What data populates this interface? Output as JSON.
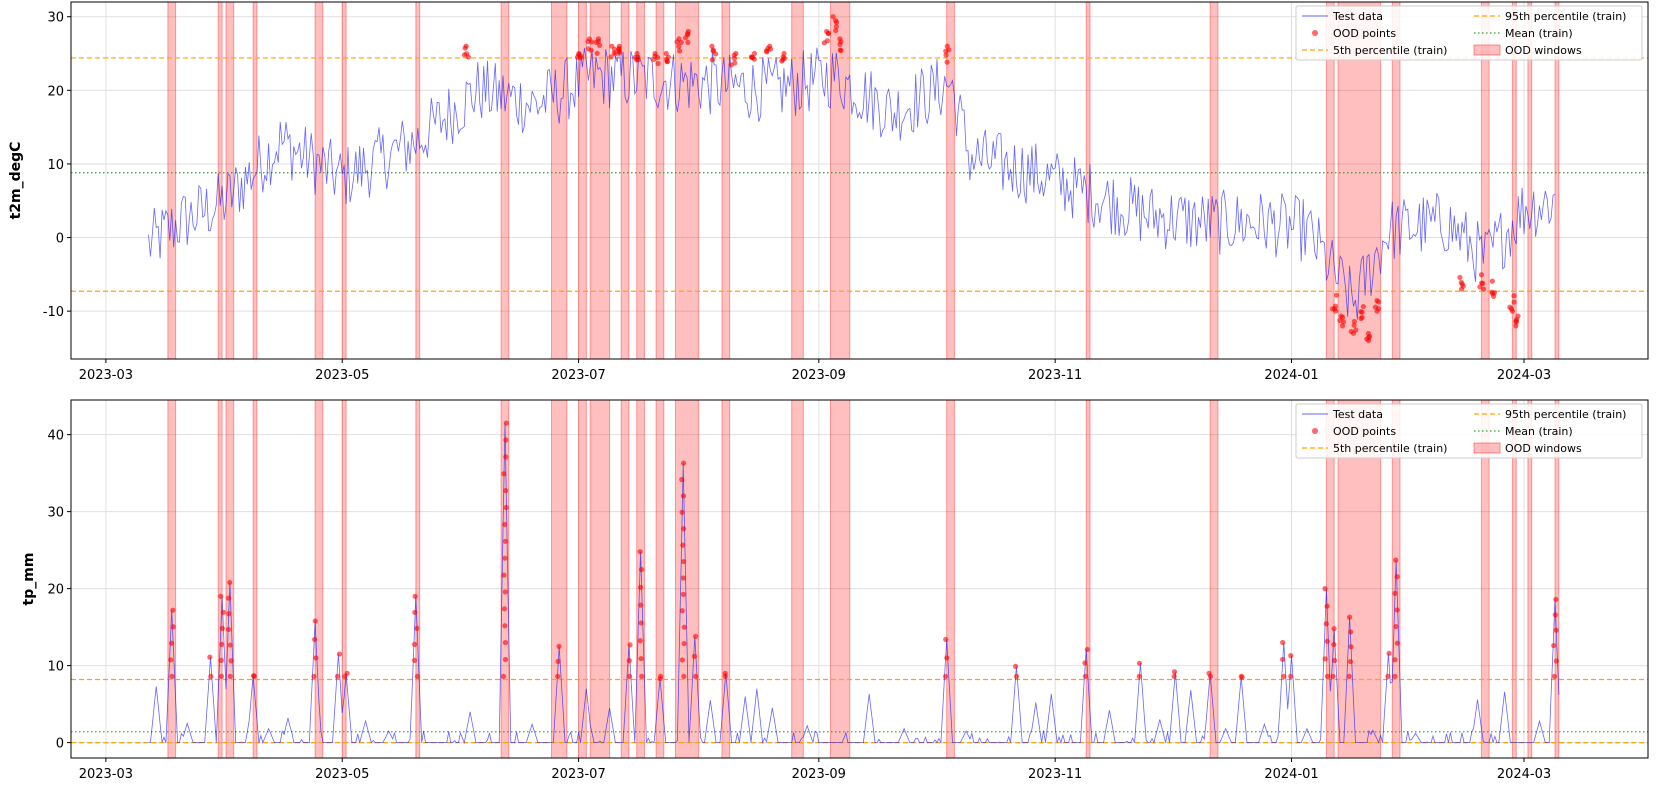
{
  "chart_data": [
    {
      "type": "line",
      "ylabel": "t2m_degC",
      "xlabel": "",
      "ylim": [
        -16.5,
        32
      ],
      "yticks": [
        -10,
        0,
        10,
        20,
        30
      ],
      "x_range": [
        "2023-02-20",
        "2024-04-02"
      ],
      "xticks": [
        "2023-03",
        "2023-05",
        "2023-07",
        "2023-09",
        "2023-11",
        "2024-01",
        "2024-03"
      ],
      "grid": true,
      "legend_position": "top-right",
      "legend": [
        "Test data",
        "OOD points",
        "5th percentile (train)",
        "95th percentile (train)",
        "Mean (train)",
        "OOD windows"
      ],
      "reference_lines": {
        "p5": -7.3,
        "p95": 24.4,
        "mean": 8.8
      },
      "test_data_profile": [
        {
          "x": "2023-03-12",
          "y": -1
        },
        {
          "x": "2023-03-20",
          "y": 2
        },
        {
          "x": "2023-04-01",
          "y": 5
        },
        {
          "x": "2023-04-15",
          "y": 13
        },
        {
          "x": "2023-05-01",
          "y": 8
        },
        {
          "x": "2023-05-20",
          "y": 13
        },
        {
          "x": "2023-06-05",
          "y": 20
        },
        {
          "x": "2023-06-20",
          "y": 18
        },
        {
          "x": "2023-07-05",
          "y": 22
        },
        {
          "x": "2023-08-01",
          "y": 21
        },
        {
          "x": "2023-08-20",
          "y": 20
        },
        {
          "x": "2023-09-05",
          "y": 22
        },
        {
          "x": "2023-09-20",
          "y": 17
        },
        {
          "x": "2023-10-05",
          "y": 21
        },
        {
          "x": "2023-10-10",
          "y": 11
        },
        {
          "x": "2023-10-25",
          "y": 9
        },
        {
          "x": "2023-11-10",
          "y": 6
        },
        {
          "x": "2023-11-25",
          "y": 3
        },
        {
          "x": "2023-12-10",
          "y": 2
        },
        {
          "x": "2023-12-25",
          "y": 2
        },
        {
          "x": "2024-01-05",
          "y": 1
        },
        {
          "x": "2024-01-17",
          "y": -9
        },
        {
          "x": "2024-01-26",
          "y": 1
        },
        {
          "x": "2024-02-10",
          "y": 2
        },
        {
          "x": "2024-02-20",
          "y": -3
        },
        {
          "x": "2024-03-01",
          "y": 4
        },
        {
          "x": "2024-03-09",
          "y": 5
        }
      ],
      "ood_points": [
        {
          "x": "2023-06-02",
          "y": 26
        },
        {
          "x": "2023-07-01",
          "y": 25
        },
        {
          "x": "2023-07-04",
          "y": 27
        },
        {
          "x": "2023-07-06",
          "y": 27
        },
        {
          "x": "2023-07-10",
          "y": 26
        },
        {
          "x": "2023-07-12",
          "y": 26
        },
        {
          "x": "2023-07-16",
          "y": 25
        },
        {
          "x": "2023-07-21",
          "y": 25
        },
        {
          "x": "2023-07-24",
          "y": 25
        },
        {
          "x": "2023-07-27",
          "y": 27
        },
        {
          "x": "2023-07-29",
          "y": 28
        },
        {
          "x": "2023-08-05",
          "y": 26
        },
        {
          "x": "2023-08-10",
          "y": 25
        },
        {
          "x": "2023-08-15",
          "y": 25
        },
        {
          "x": "2023-08-19",
          "y": 26
        },
        {
          "x": "2023-08-23",
          "y": 25
        },
        {
          "x": "2023-09-03",
          "y": 28
        },
        {
          "x": "2023-09-05",
          "y": 30
        },
        {
          "x": "2023-09-07",
          "y": 27
        },
        {
          "x": "2023-10-04",
          "y": 26
        },
        {
          "x": "2024-01-12",
          "y": -10
        },
        {
          "x": "2024-01-14",
          "y": -12
        },
        {
          "x": "2024-01-17",
          "y": -13
        },
        {
          "x": "2024-01-19",
          "y": -11
        },
        {
          "x": "2024-01-21",
          "y": -14
        },
        {
          "x": "2024-01-23",
          "y": -10
        },
        {
          "x": "2024-02-14",
          "y": -7
        },
        {
          "x": "2024-02-19",
          "y": -7
        },
        {
          "x": "2024-02-22",
          "y": -8
        },
        {
          "x": "2024-02-27",
          "y": -10
        },
        {
          "x": "2024-02-28",
          "y": -12
        }
      ]
    },
    {
      "type": "line",
      "ylabel": "tp_mm",
      "xlabel": "",
      "ylim": [
        -2,
        44.5
      ],
      "yticks": [
        0,
        10,
        20,
        30,
        40
      ],
      "x_range": [
        "2023-02-20",
        "2024-04-02"
      ],
      "xticks": [
        "2023-03",
        "2023-05",
        "2023-07",
        "2023-09",
        "2023-11",
        "2024-01",
        "2024-03"
      ],
      "grid": true,
      "legend_position": "top-right",
      "legend": [
        "Test data",
        "OOD points",
        "5th percentile (train)",
        "95th percentile (train)",
        "Mean (train)",
        "OOD windows"
      ],
      "reference_lines": {
        "p5": 0,
        "p95": 8.2,
        "mean": 1.4
      },
      "peaks": [
        {
          "x": "2023-03-18",
          "y": 17.2
        },
        {
          "x": "2023-03-28",
          "y": 11.1
        },
        {
          "x": "2023-03-31",
          "y": 19.0
        },
        {
          "x": "2023-04-02",
          "y": 20.8
        },
        {
          "x": "2023-04-08",
          "y": 8.7
        },
        {
          "x": "2023-04-24",
          "y": 15.8
        },
        {
          "x": "2023-04-30",
          "y": 11.5
        },
        {
          "x": "2023-05-02",
          "y": 9.0
        },
        {
          "x": "2023-05-20",
          "y": 19.0
        },
        {
          "x": "2023-06-12",
          "y": 41.5
        },
        {
          "x": "2023-06-26",
          "y": 12.5
        },
        {
          "x": "2023-07-14",
          "y": 12.7
        },
        {
          "x": "2023-07-17",
          "y": 24.8
        },
        {
          "x": "2023-07-22",
          "y": 8.3
        },
        {
          "x": "2023-07-28",
          "y": 36.3
        },
        {
          "x": "2023-07-31",
          "y": 13.8
        },
        {
          "x": "2023-08-08",
          "y": 9.0
        },
        {
          "x": "2023-10-04",
          "y": 13.4
        },
        {
          "x": "2023-10-22",
          "y": 9.9
        },
        {
          "x": "2023-11-09",
          "y": 12.1
        },
        {
          "x": "2023-11-23",
          "y": 10.3
        },
        {
          "x": "2023-12-02",
          "y": 9.2
        },
        {
          "x": "2023-12-11",
          "y": 9.0
        },
        {
          "x": "2023-12-19",
          "y": 8.5
        },
        {
          "x": "2023-12-30",
          "y": 13.0
        },
        {
          "x": "2024-01-01",
          "y": 11.3
        },
        {
          "x": "2024-01-10",
          "y": 20.0
        },
        {
          "x": "2024-01-12",
          "y": 14.8
        },
        {
          "x": "2024-01-16",
          "y": 16.3
        },
        {
          "x": "2024-01-26",
          "y": 11.6
        },
        {
          "x": "2024-01-28",
          "y": 23.7
        },
        {
          "x": "2024-03-09",
          "y": 18.6
        }
      ],
      "small_peaks": [
        {
          "x": "2023-03-14",
          "y": 7.3
        },
        {
          "x": "2023-03-22",
          "y": 2.5
        },
        {
          "x": "2023-04-12",
          "y": 1.8
        },
        {
          "x": "2023-04-17",
          "y": 3.2
        },
        {
          "x": "2023-05-07",
          "y": 2.8
        },
        {
          "x": "2023-05-13",
          "y": 1.5
        },
        {
          "x": "2023-06-03",
          "y": 4.0
        },
        {
          "x": "2023-06-19",
          "y": 2.4
        },
        {
          "x": "2023-07-03",
          "y": 7.0
        },
        {
          "x": "2023-07-09",
          "y": 4.5
        },
        {
          "x": "2023-08-04",
          "y": 5.5
        },
        {
          "x": "2023-08-13",
          "y": 6.0
        },
        {
          "x": "2023-08-16",
          "y": 7.0
        },
        {
          "x": "2023-08-20",
          "y": 4.5
        },
        {
          "x": "2023-08-29",
          "y": 2.2
        },
        {
          "x": "2023-09-14",
          "y": 6.3
        },
        {
          "x": "2023-09-23",
          "y": 1.8
        },
        {
          "x": "2023-10-09",
          "y": 1.5
        },
        {
          "x": "2023-10-27",
          "y": 5.2
        },
        {
          "x": "2023-10-31",
          "y": 6.3
        },
        {
          "x": "2023-11-15",
          "y": 4.2
        },
        {
          "x": "2023-11-28",
          "y": 3.0
        },
        {
          "x": "2023-12-06",
          "y": 6.8
        },
        {
          "x": "2023-12-15",
          "y": 1.8
        },
        {
          "x": "2023-12-25",
          "y": 2.4
        },
        {
          "x": "2024-01-05",
          "y": 1.8
        },
        {
          "x": "2024-01-22",
          "y": 1.6
        },
        {
          "x": "2024-02-02",
          "y": 1.2
        },
        {
          "x": "2024-02-18",
          "y": 5.6
        },
        {
          "x": "2024-02-25",
          "y": 6.6
        },
        {
          "x": "2024-03-05",
          "y": 2.8
        }
      ]
    }
  ],
  "ood_windows": [
    [
      "2023-03-17",
      "2023-03-19"
    ],
    [
      "2023-03-30",
      "2023-03-31"
    ],
    [
      "2023-04-01",
      "2023-04-03"
    ],
    [
      "2023-04-08",
      "2023-04-09"
    ],
    [
      "2023-04-24",
      "2023-04-26"
    ],
    [
      "2023-05-01",
      "2023-05-02"
    ],
    [
      "2023-05-20",
      "2023-05-21"
    ],
    [
      "2023-06-11",
      "2023-06-13"
    ],
    [
      "2023-06-24",
      "2023-06-28"
    ],
    [
      "2023-07-01",
      "2023-07-03"
    ],
    [
      "2023-07-04",
      "2023-07-09"
    ],
    [
      "2023-07-12",
      "2023-07-14"
    ],
    [
      "2023-07-16",
      "2023-07-18"
    ],
    [
      "2023-07-21",
      "2023-07-23"
    ],
    [
      "2023-07-26",
      "2023-08-01"
    ],
    [
      "2023-08-07",
      "2023-08-09"
    ],
    [
      "2023-08-25",
      "2023-08-28"
    ],
    [
      "2023-09-04",
      "2023-09-09"
    ],
    [
      "2023-10-04",
      "2023-10-06"
    ],
    [
      "2023-11-09",
      "2023-11-10"
    ],
    [
      "2023-12-11",
      "2023-12-13"
    ],
    [
      "2024-01-10",
      "2024-01-12"
    ],
    [
      "2024-01-13",
      "2024-01-24"
    ],
    [
      "2024-01-27",
      "2024-01-29"
    ],
    [
      "2024-02-19",
      "2024-02-21"
    ],
    [
      "2024-02-27",
      "2024-02-28"
    ],
    [
      "2024-03-02",
      "2024-03-03"
    ],
    [
      "2024-03-09",
      "2024-03-10"
    ]
  ],
  "legend_labels": {
    "test": "Test data",
    "ood": "OOD points",
    "p5": "5th percentile (train)",
    "p95": "95th percentile (train)",
    "mean": "Mean (train)",
    "win": "OOD windows"
  },
  "colors": {
    "test_line": "#0000ff",
    "ood_point": "#ff0000",
    "percentile": "#ffa500",
    "mean": "#2ca02c",
    "window": "#ff0000"
  }
}
